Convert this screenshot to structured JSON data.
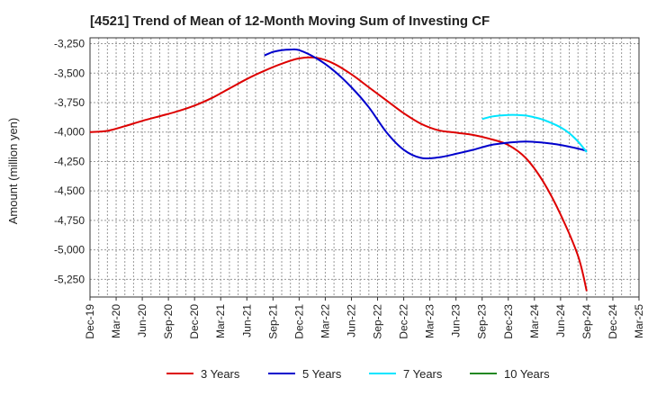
{
  "chart_data": {
    "type": "line",
    "title": "[4521]  Trend of Mean of 12-Month Moving Sum of Investing CF",
    "xlabel": "",
    "ylabel": "Amount (million yen)",
    "ylim": [
      -5400,
      -3200
    ],
    "yticks": [
      -3250,
      -3500,
      -3750,
      -4000,
      -4250,
      -4500,
      -4750,
      -5000,
      -5250
    ],
    "ytick_labels": [
      "-3,250",
      "-3,500",
      "-3,750",
      "-4,000",
      "-4,250",
      "-4,500",
      "-4,750",
      "-5,000",
      "-5,250"
    ],
    "x_range": [
      0,
      63
    ],
    "xticks": [
      0,
      3,
      6,
      9,
      12,
      15,
      18,
      21,
      24,
      27,
      30,
      33,
      36,
      39,
      42,
      45,
      48,
      51,
      54,
      57,
      60,
      63
    ],
    "xtick_labels": [
      "Dec-19",
      "Mar-20",
      "Jun-20",
      "Sep-20",
      "Dec-20",
      "Mar-21",
      "Jun-21",
      "Sep-21",
      "Dec-21",
      "Mar-22",
      "Jun-22",
      "Sep-22",
      "Dec-22",
      "Mar-23",
      "Jun-23",
      "Sep-23",
      "Dec-23",
      "Mar-24",
      "Jun-24",
      "Sep-24",
      "Dec-24",
      "Mar-25"
    ],
    "grid": true,
    "legend_position": "bottom",
    "series": [
      {
        "name": "3 Years",
        "color": "#dd0000",
        "x": [
          0,
          2,
          4,
          6,
          8,
          10,
          12,
          14,
          16,
          18,
          20,
          22,
          24,
          26,
          28,
          30,
          32,
          34,
          36,
          38,
          40,
          42,
          44,
          46,
          48,
          50,
          52,
          54,
          56,
          57
        ],
        "y": [
          -4000,
          -3990,
          -3950,
          -3905,
          -3865,
          -3825,
          -3775,
          -3710,
          -3630,
          -3550,
          -3480,
          -3420,
          -3375,
          -3370,
          -3420,
          -3510,
          -3620,
          -3730,
          -3840,
          -3930,
          -3985,
          -4005,
          -4025,
          -4060,
          -4110,
          -4220,
          -4420,
          -4700,
          -5050,
          -5350
        ]
      },
      {
        "name": "5 Years",
        "color": "#0000cc",
        "x": [
          20,
          21,
          22,
          23,
          24,
          26,
          28,
          30,
          32,
          34,
          36,
          38,
          40,
          42,
          44,
          46,
          48,
          50,
          52,
          54,
          56,
          57
        ],
        "y": [
          -3350,
          -3320,
          -3305,
          -3300,
          -3305,
          -3375,
          -3480,
          -3620,
          -3790,
          -4000,
          -4150,
          -4220,
          -4215,
          -4185,
          -4150,
          -4110,
          -4090,
          -4080,
          -4090,
          -4110,
          -4140,
          -4160
        ]
      },
      {
        "name": "7 Years",
        "color": "#00e5ff",
        "x": [
          45,
          46,
          47,
          48,
          49,
          50,
          51,
          52,
          53,
          54,
          55,
          56,
          57
        ],
        "y": [
          -3890,
          -3870,
          -3860,
          -3855,
          -3855,
          -3860,
          -3875,
          -3895,
          -3925,
          -3960,
          -4010,
          -4080,
          -4170
        ]
      },
      {
        "name": "10 Years",
        "color": "#228822",
        "x": [],
        "y": []
      }
    ]
  }
}
